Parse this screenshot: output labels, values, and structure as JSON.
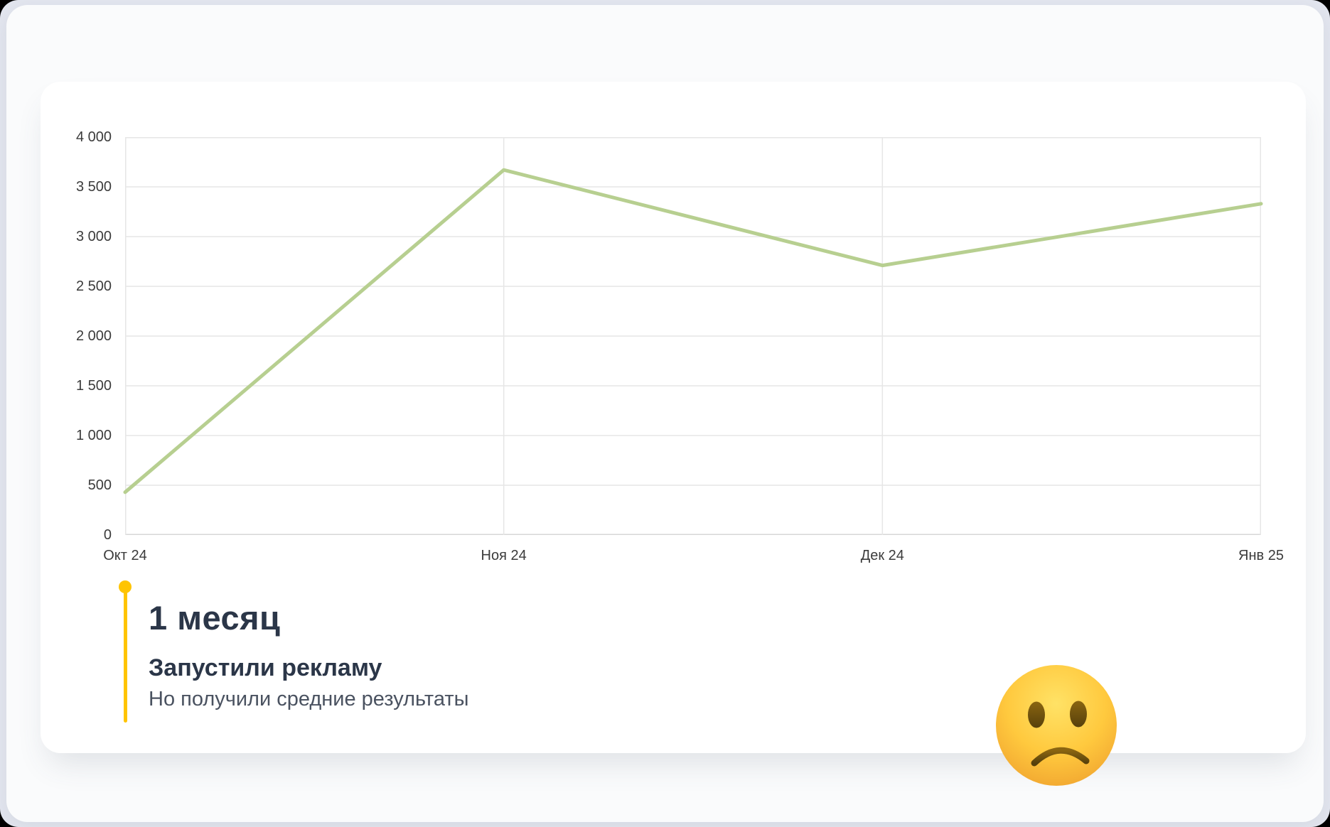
{
  "page": {
    "background_color": "#e3e6ef",
    "panel_color": "#fafbfc",
    "card_color": "#ffffff"
  },
  "chart_data": {
    "type": "line",
    "title": "",
    "xlabel": "",
    "ylabel": "",
    "categories": [
      "Окт 24",
      "Ноя 24",
      "Дек 24",
      "Янв 25"
    ],
    "series": [
      {
        "name": "monthly-results",
        "values": [
          430,
          3670,
          2710,
          3330
        ]
      }
    ],
    "ylim": [
      0,
      4000
    ],
    "yticks": [
      0,
      500,
      1000,
      1500,
      2000,
      2500,
      3000,
      3500,
      4000
    ],
    "ytick_labels": [
      "0",
      "500",
      "1 000",
      "1 500",
      "2 000",
      "2 500",
      "3 000",
      "3 500",
      "4 000"
    ],
    "grid": true,
    "legend": false,
    "line_color": "#b7cf90",
    "grid_color": "#e6e6e6",
    "axis_line_color": "#d7d7d7",
    "axis_text_color": "#3b3b3b"
  },
  "timeline": {
    "period": "1 месяц",
    "title": "Запустили рекламу",
    "subtitle": "Но получили средние результаты",
    "accent_color": "#ffc400",
    "heading_color": "#2b3648",
    "subtitle_color": "#4a5260"
  },
  "emoji": {
    "name": "slightly-frowning-face",
    "face_color": "#ffcc4d",
    "feature_color": "#6e5212"
  }
}
